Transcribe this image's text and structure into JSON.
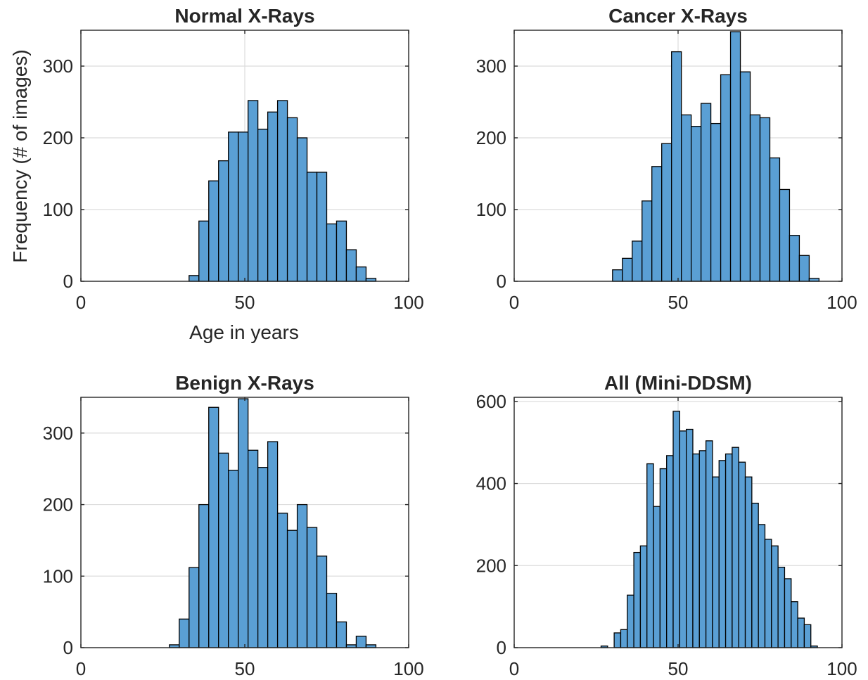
{
  "figure": {
    "ylabel": "Frequency (# of images)",
    "xlabel": "Age in years"
  },
  "colors": {
    "bar_fill": "#5a9fd4",
    "bar_edge": "#000000",
    "grid": "#dcdcdc",
    "axes": "#262626"
  },
  "chart_data": [
    {
      "type": "bar",
      "title": "Normal X-Rays",
      "xlabel": "Age in years",
      "ylabel": "Frequency (# of images)",
      "xlim": [
        0,
        100
      ],
      "ylim": [
        0,
        350
      ],
      "xticks": [
        0,
        50,
        100
      ],
      "yticks": [
        0,
        100,
        200,
        300
      ],
      "grid": true,
      "bin_edges": [
        33,
        36,
        39,
        42,
        45,
        48,
        51,
        54,
        57,
        60,
        63,
        66,
        69,
        72,
        75,
        78,
        81,
        84,
        87,
        90
      ],
      "values": [
        8,
        84,
        140,
        168,
        208,
        208,
        252,
        212,
        236,
        252,
        228,
        200,
        152,
        152,
        80,
        84,
        44,
        20,
        4
      ]
    },
    {
      "type": "bar",
      "title": "Cancer X-Rays",
      "xlabel": "",
      "ylabel": "",
      "xlim": [
        0,
        100
      ],
      "ylim": [
        0,
        350
      ],
      "xticks": [
        0,
        50,
        100
      ],
      "yticks": [
        0,
        100,
        200,
        300
      ],
      "grid": true,
      "bin_edges": [
        30,
        33,
        36,
        39,
        42,
        45,
        48,
        51,
        54,
        57,
        60,
        63,
        66,
        69,
        72,
        75,
        78,
        81,
        84,
        87,
        90,
        93
      ],
      "values": [
        16,
        32,
        56,
        112,
        160,
        192,
        320,
        232,
        216,
        248,
        220,
        288,
        348,
        292,
        232,
        228,
        172,
        128,
        64,
        36,
        4
      ]
    },
    {
      "type": "bar",
      "title": "Benign X-Rays",
      "xlabel": "",
      "ylabel": "",
      "xlim": [
        0,
        100
      ],
      "ylim": [
        0,
        350
      ],
      "xticks": [
        0,
        50,
        100
      ],
      "yticks": [
        0,
        100,
        200,
        300
      ],
      "grid": true,
      "bin_edges": [
        27,
        30,
        33,
        36,
        39,
        42,
        45,
        48,
        51,
        54,
        57,
        60,
        63,
        66,
        69,
        72,
        75,
        78,
        81,
        84,
        87,
        90
      ],
      "values": [
        4,
        40,
        112,
        200,
        336,
        272,
        248,
        348,
        276,
        252,
        288,
        188,
        164,
        200,
        168,
        128,
        76,
        36,
        4,
        16,
        4
      ]
    },
    {
      "type": "bar",
      "title": "All (Mini-DDSM)",
      "xlabel": "",
      "ylabel": "",
      "xlim": [
        0,
        100
      ],
      "ylim": [
        0,
        610
      ],
      "xticks": [
        0,
        50,
        100
      ],
      "yticks": [
        0,
        200,
        400,
        600
      ],
      "grid": true,
      "bin_edges": [
        26.5,
        28.5,
        30.5,
        32.5,
        34.5,
        36.5,
        38.5,
        40.5,
        42.5,
        44.5,
        46.5,
        48.5,
        50.5,
        52.5,
        54.5,
        56.5,
        58.5,
        60.5,
        62.5,
        64.5,
        66.5,
        68.5,
        70.5,
        72.5,
        74.5,
        76.5,
        78.5,
        80.5,
        82.5,
        84.5,
        86.5,
        88.5,
        90.5,
        92.5
      ],
      "values": [
        4,
        0,
        36,
        44,
        128,
        232,
        248,
        448,
        344,
        436,
        468,
        576,
        528,
        532,
        472,
        480,
        504,
        416,
        456,
        472,
        488,
        452,
        416,
        352,
        300,
        264,
        248,
        196,
        168,
        112,
        72,
        56,
        4
      ]
    }
  ]
}
